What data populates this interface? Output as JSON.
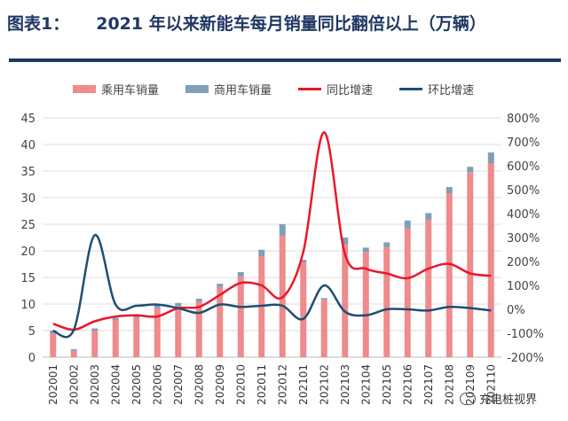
{
  "header": {
    "prefix": "图表1：",
    "title": "2021 年以来新能车每月销量同比翻倍以上（万辆）"
  },
  "watermark": "充电桩视界",
  "colors": {
    "passenger": "#ef8a8d",
    "commercial": "#7f9fb8",
    "yoy": "#e8182a",
    "mom": "#1d4f72",
    "title": "#1f3864"
  },
  "chart_data": {
    "type": "bar",
    "categories": [
      "202001",
      "202002",
      "202003",
      "202004",
      "202005",
      "202006",
      "202007",
      "202008",
      "202009",
      "202010",
      "202011",
      "202012",
      "202101",
      "202102",
      "202103",
      "202104",
      "202105",
      "202106",
      "202107",
      "202108",
      "202109",
      "202110"
    ],
    "legend": [
      "乘用车销量",
      "商用车销量",
      "同比增速",
      "环比增速"
    ],
    "series": [
      {
        "name": "乘用车销量",
        "kind": "stacked-bar",
        "axis": "left",
        "values": [
          4.5,
          1.2,
          5,
          7,
          7.5,
          9.2,
          9.6,
          10.5,
          13.2,
          15.2,
          19,
          22.8,
          17.8,
          10.8,
          21.2,
          19.8,
          20.7,
          24.2,
          25.8,
          30.8,
          34.8,
          36.5
        ]
      },
      {
        "name": "商用车销量",
        "kind": "stacked-bar",
        "axis": "left",
        "values": [
          0.5,
          0.3,
          0.4,
          0.4,
          0.4,
          0.6,
          0.6,
          0.5,
          0.6,
          0.8,
          1.2,
          2.2,
          0.5,
          0.3,
          1.3,
          0.8,
          0.9,
          1.5,
          1.3,
          1.2,
          1,
          2
        ]
      },
      {
        "name": "同比增速",
        "kind": "line",
        "axis": "right",
        "values": [
          -60,
          -85,
          -50,
          -30,
          -25,
          -30,
          5,
          10,
          60,
          110,
          100,
          50,
          240,
          740,
          230,
          170,
          150,
          130,
          170,
          190,
          150,
          140
        ]
      },
      {
        "name": "环比增速",
        "kind": "line",
        "axis": "right",
        "values": [
          -90,
          -85,
          310,
          20,
          15,
          20,
          5,
          -15,
          20,
          10,
          15,
          15,
          -40,
          100,
          -10,
          -25,
          0,
          0,
          -5,
          10,
          5,
          -5
        ]
      }
    ],
    "yLeft": {
      "min": 0,
      "max": 45,
      "ticks": [
        "0",
        "5",
        "10",
        "15",
        "20",
        "25",
        "30",
        "35",
        "40",
        "45"
      ]
    },
    "yRight": {
      "min": -200,
      "max": 800,
      "ticks": [
        "-200%",
        "-100%",
        "0%",
        "100%",
        "200%",
        "300%",
        "400%",
        "500%",
        "600%",
        "700%",
        "800%"
      ]
    },
    "grid": true,
    "legend_position": "top"
  }
}
